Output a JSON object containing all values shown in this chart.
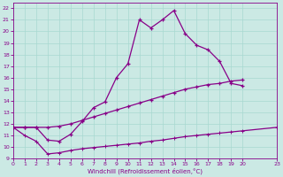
{
  "xlabel": "Windchill (Refroidissement éolien,°C)",
  "bg_color": "#cbe9e4",
  "line_color": "#880088",
  "grid_color": "#a8d8d0",
  "xmin": 0,
  "xmax": 23,
  "ymin": 9,
  "ymax": 22.5,
  "yticks": [
    9,
    10,
    11,
    12,
    13,
    14,
    15,
    16,
    17,
    18,
    19,
    20,
    21,
    22
  ],
  "xticks": [
    0,
    1,
    2,
    3,
    4,
    5,
    6,
    7,
    8,
    9,
    10,
    11,
    12,
    13,
    14,
    15,
    16,
    17,
    18,
    19,
    20,
    23
  ],
  "line1_x": [
    0,
    1,
    2,
    3,
    4,
    5,
    6,
    7,
    8,
    9,
    10,
    11,
    12,
    13,
    14,
    15,
    16,
    17,
    18,
    19,
    20
  ],
  "line1_y": [
    11.7,
    11.7,
    11.7,
    10.6,
    10.5,
    11.1,
    12.2,
    13.4,
    13.9,
    16.0,
    17.2,
    21.0,
    20.3,
    21.0,
    21.8,
    19.8,
    18.8,
    18.4,
    17.4,
    15.5,
    15.3
  ],
  "line2_x": [
    0,
    1,
    2,
    3,
    4,
    5,
    6,
    7,
    8,
    9,
    10,
    11,
    12,
    13,
    14,
    15,
    16,
    17,
    18,
    19,
    20
  ],
  "line2_y": [
    11.7,
    11.7,
    11.7,
    11.7,
    11.8,
    12.0,
    12.3,
    12.6,
    12.9,
    13.2,
    13.5,
    13.8,
    14.1,
    14.4,
    14.7,
    15.0,
    15.2,
    15.4,
    15.5,
    15.7,
    15.8
  ],
  "line3_x": [
    0,
    1,
    2,
    3,
    4,
    5,
    6,
    7,
    8,
    9,
    10,
    11,
    12,
    13,
    14,
    15,
    16,
    17,
    18,
    19,
    20,
    23
  ],
  "line3_y": [
    11.7,
    11.0,
    10.5,
    9.4,
    9.5,
    9.7,
    9.85,
    9.95,
    10.05,
    10.15,
    10.25,
    10.35,
    10.5,
    10.6,
    10.75,
    10.9,
    11.0,
    11.1,
    11.2,
    11.3,
    11.4,
    11.7
  ]
}
